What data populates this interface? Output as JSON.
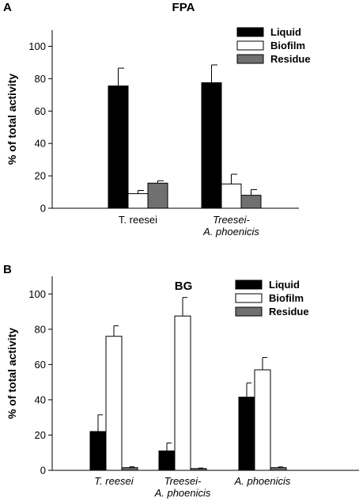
{
  "chart_data": [
    {
      "panel": "A",
      "type": "bar",
      "title": "FPA",
      "ylabel": "% of total  activity",
      "xlabel": "",
      "ylim": [
        0,
        110
      ],
      "yticks": [
        0,
        20,
        40,
        60,
        80,
        100
      ],
      "categories": [
        {
          "lines": [
            "T. reesei"
          ],
          "italic": false
        },
        {
          "lines": [
            "Treesei-",
            "A. phoenicis"
          ],
          "italic": true
        }
      ],
      "legend_position": "top-right",
      "series": [
        {
          "name": "Liquid",
          "color": "#000000",
          "values": [
            75.5,
            77.5
          ],
          "errors": [
            11,
            11
          ]
        },
        {
          "name": "Biofilm",
          "color": "#ffffff",
          "values": [
            9,
            15
          ],
          "errors": [
            2,
            6
          ]
        },
        {
          "name": "Residue",
          "color": "#707070",
          "values": [
            15.5,
            8
          ],
          "errors": [
            1.5,
            3.5
          ]
        }
      ]
    },
    {
      "panel": "B",
      "type": "bar",
      "title": "BG",
      "ylabel": "% of total  activity",
      "xlabel": "",
      "ylim": [
        0,
        110
      ],
      "yticks": [
        0,
        20,
        40,
        60,
        80,
        100
      ],
      "categories": [
        {
          "lines": [
            "T. reesei"
          ],
          "italic": true
        },
        {
          "lines": [
            "Treesei-",
            "A. phoenicis"
          ],
          "italic": true
        },
        {
          "lines": [
            "A. phoenicis"
          ],
          "italic": true
        }
      ],
      "legend_position": "top-right",
      "series": [
        {
          "name": "Liquid",
          "color": "#000000",
          "values": [
            22,
            11,
            41.5
          ],
          "errors": [
            9.5,
            4.5,
            8
          ]
        },
        {
          "name": "Biofilm",
          "color": "#ffffff",
          "values": [
            76,
            87.5,
            57
          ],
          "errors": [
            6,
            10.5,
            7
          ]
        },
        {
          "name": "Residue",
          "color": "#707070",
          "values": [
            1.5,
            1,
            1.5
          ],
          "errors": [
            0.5,
            0.3,
            0.4
          ]
        }
      ]
    }
  ]
}
